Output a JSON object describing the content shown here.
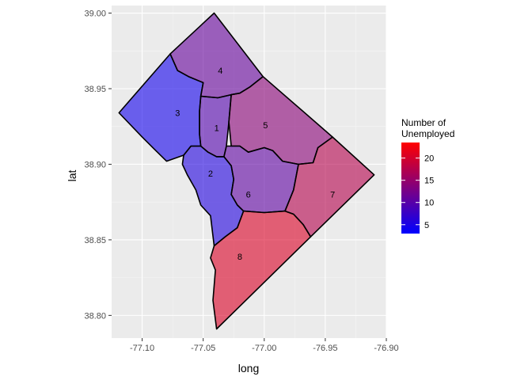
{
  "chart_data": {
    "type": "choropleth",
    "xlabel": "long",
    "ylabel": "lat",
    "xlim": [
      -77.125,
      -76.9
    ],
    "ylim": [
      38.785,
      39.005
    ],
    "x_ticks": [
      -77.1,
      -77.05,
      -77.0,
      -76.95,
      -76.9
    ],
    "x_tick_labels": [
      "-77.10",
      "-77.05",
      "-77.00",
      "-76.95",
      "-76.90"
    ],
    "y_ticks": [
      38.8,
      38.85,
      38.9,
      38.95,
      39.0
    ],
    "y_tick_labels": [
      "38.80",
      "38.85",
      "38.90",
      "38.95",
      "39.00"
    ],
    "legend": {
      "title_lines": [
        "Number of",
        "Unemployed"
      ],
      "position": "right",
      "low_color": "#0000ff",
      "high_color": "#ff0000",
      "min": 3,
      "max": 23.5,
      "ticks": [
        5,
        10,
        15,
        20
      ],
      "tick_labels": [
        "5",
        "10",
        "15",
        "20"
      ]
    },
    "fill_opacity": 0.6,
    "regions": [
      {
        "label": "1",
        "value": 9.5,
        "label_pos": [
          -77.039,
          38.924
        ],
        "polygon": [
          [
            -77.052,
            38.945
          ],
          [
            -77.038,
            38.944
          ],
          [
            -77.027,
            38.946
          ],
          [
            -77.029,
            38.928
          ],
          [
            -77.031,
            38.912
          ],
          [
            -77.033,
            38.905
          ],
          [
            -77.039,
            38.905
          ],
          [
            -77.046,
            38.908
          ],
          [
            -77.052,
            38.912
          ],
          [
            -77.053,
            38.92
          ],
          [
            -77.053,
            38.935
          ]
        ]
      },
      {
        "label": "2",
        "value": 5.5,
        "label_pos": [
          -77.044,
          38.894
        ],
        "polygon": [
          [
            -77.066,
            38.906
          ],
          [
            -77.06,
            38.912
          ],
          [
            -77.052,
            38.912
          ],
          [
            -77.046,
            38.908
          ],
          [
            -77.039,
            38.905
          ],
          [
            -77.033,
            38.905
          ],
          [
            -77.027,
            38.899
          ],
          [
            -77.025,
            38.89
          ],
          [
            -77.027,
            38.88
          ],
          [
            -77.022,
            38.873
          ],
          [
            -77.017,
            38.869
          ],
          [
            -77.022,
            38.858
          ],
          [
            -77.032,
            38.852
          ],
          [
            -77.041,
            38.846
          ],
          [
            -77.044,
            38.866
          ],
          [
            -77.052,
            38.873
          ],
          [
            -77.056,
            38.883
          ],
          [
            -77.063,
            38.893
          ],
          [
            -77.067,
            38.9
          ]
        ]
      },
      {
        "label": "3",
        "value": 4.5,
        "label_pos": [
          -77.071,
          38.934
        ],
        "polygon": [
          [
            -77.119,
            38.934
          ],
          [
            -77.077,
            38.973
          ],
          [
            -77.071,
            38.962
          ],
          [
            -77.062,
            38.958
          ],
          [
            -77.05,
            38.954
          ],
          [
            -77.052,
            38.945
          ],
          [
            -77.053,
            38.935
          ],
          [
            -77.053,
            38.92
          ],
          [
            -77.052,
            38.912
          ],
          [
            -77.06,
            38.912
          ],
          [
            -77.066,
            38.906
          ],
          [
            -77.08,
            38.902
          ],
          [
            -77.09,
            38.91
          ],
          [
            -77.1,
            38.918
          ]
        ]
      },
      {
        "label": "4",
        "value": 11,
        "label_pos": [
          -77.036,
          38.962
        ],
        "polygon": [
          [
            -77.077,
            38.973
          ],
          [
            -77.041,
            39.0
          ],
          [
            -77.001,
            38.958
          ],
          [
            -77.012,
            38.951
          ],
          [
            -77.02,
            38.947
          ],
          [
            -77.027,
            38.946
          ],
          [
            -77.038,
            38.944
          ],
          [
            -77.052,
            38.945
          ],
          [
            -77.05,
            38.954
          ],
          [
            -77.062,
            38.958
          ],
          [
            -77.071,
            38.962
          ]
        ]
      },
      {
        "label": "5",
        "value": 14,
        "label_pos": [
          -76.999,
          38.926
        ],
        "polygon": [
          [
            -77.001,
            38.958
          ],
          [
            -76.944,
            38.918
          ],
          [
            -76.956,
            38.911
          ],
          [
            -76.96,
            38.901
          ],
          [
            -76.972,
            38.9
          ],
          [
            -76.985,
            38.902
          ],
          [
            -76.993,
            38.909
          ],
          [
            -77.0,
            38.911
          ],
          [
            -77.013,
            38.908
          ],
          [
            -77.02,
            38.912
          ],
          [
            -77.027,
            38.912
          ],
          [
            -77.029,
            38.928
          ],
          [
            -77.027,
            38.946
          ],
          [
            -77.02,
            38.947
          ],
          [
            -77.012,
            38.951
          ]
        ]
      },
      {
        "label": "6",
        "value": 10.5,
        "label_pos": [
          -77.013,
          38.88
        ],
        "polygon": [
          [
            -77.031,
            38.912
          ],
          [
            -77.02,
            38.912
          ],
          [
            -77.013,
            38.908
          ],
          [
            -77.0,
            38.911
          ],
          [
            -76.993,
            38.909
          ],
          [
            -76.985,
            38.902
          ],
          [
            -76.972,
            38.9
          ],
          [
            -76.976,
            38.883
          ],
          [
            -76.983,
            38.869
          ],
          [
            -77.0,
            38.868
          ],
          [
            -77.017,
            38.869
          ],
          [
            -77.022,
            38.873
          ],
          [
            -77.027,
            38.88
          ],
          [
            -77.025,
            38.89
          ],
          [
            -77.027,
            38.899
          ],
          [
            -77.033,
            38.905
          ]
        ]
      },
      {
        "label": "7",
        "value": 17.5,
        "label_pos": [
          -76.944,
          38.88
        ],
        "polygon": [
          [
            -76.944,
            38.918
          ],
          [
            -76.91,
            38.893
          ],
          [
            -76.962,
            38.852
          ],
          [
            -76.968,
            38.86
          ],
          [
            -76.976,
            38.867
          ],
          [
            -76.983,
            38.869
          ],
          [
            -76.976,
            38.883
          ],
          [
            -76.972,
            38.9
          ],
          [
            -76.96,
            38.901
          ],
          [
            -76.956,
            38.911
          ]
        ]
      },
      {
        "label": "8",
        "value": 20.5,
        "label_pos": [
          -77.02,
          38.839
        ],
        "polygon": [
          [
            -77.041,
            38.846
          ],
          [
            -77.032,
            38.852
          ],
          [
            -77.022,
            38.858
          ],
          [
            -77.017,
            38.869
          ],
          [
            -77.0,
            38.868
          ],
          [
            -76.983,
            38.869
          ],
          [
            -76.976,
            38.867
          ],
          [
            -76.968,
            38.86
          ],
          [
            -76.962,
            38.852
          ],
          [
            -77.039,
            38.791
          ],
          [
            -77.042,
            38.81
          ],
          [
            -77.04,
            38.83
          ],
          [
            -77.044,
            38.838
          ]
        ]
      }
    ]
  }
}
